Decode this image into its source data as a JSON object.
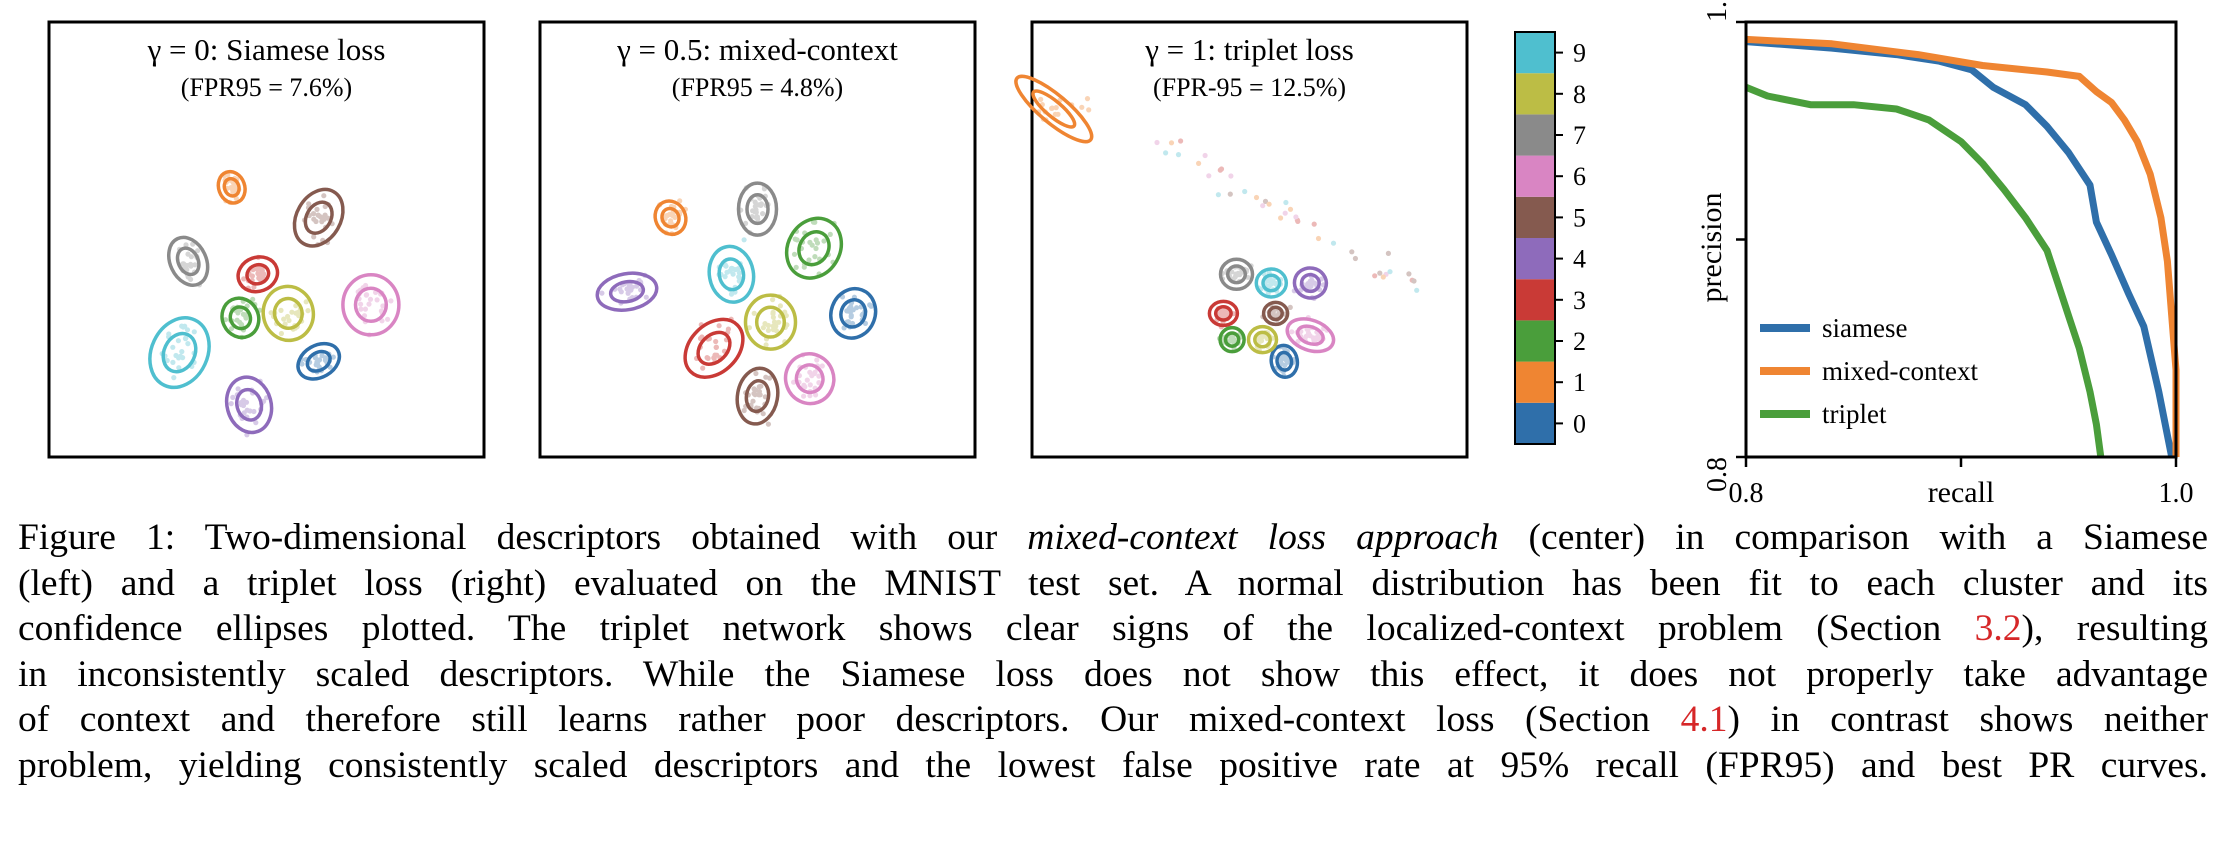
{
  "colors": {
    "0": "#2f6faa",
    "1": "#ef8532",
    "2": "#4a9e3b",
    "3": "#c93a36",
    "4": "#8e6bbb",
    "5": "#855a4f",
    "6": "#d985c3",
    "7": "#8a8a8a",
    "8": "#bcbd45",
    "9": "#4fbfcf"
  },
  "colorbar": {
    "ticks": [
      "0",
      "1",
      "2",
      "3",
      "4",
      "5",
      "6",
      "7",
      "8",
      "9"
    ]
  },
  "chart_data": [
    {
      "type": "scatter",
      "title": "γ = 0: Siamese loss",
      "subtitle": "(FPR95 = 7.6%)",
      "classes": [
        "0",
        "1",
        "2",
        "3",
        "4",
        "5",
        "6",
        "7",
        "8",
        "9"
      ],
      "cluster_centers": {
        "0": [
          0.62,
          0.22
        ],
        "1": [
          0.42,
          0.62
        ],
        "2": [
          0.44,
          0.32
        ],
        "3": [
          0.48,
          0.42
        ],
        "4": [
          0.46,
          0.12
        ],
        "5": [
          0.62,
          0.55
        ],
        "6": [
          0.74,
          0.35
        ],
        "7": [
          0.32,
          0.45
        ],
        "8": [
          0.55,
          0.33
        ],
        "9": [
          0.3,
          0.24
        ]
      }
    },
    {
      "type": "scatter",
      "title": "γ = 0.5: mixed-context",
      "subtitle": "(FPR95 = 4.8%)",
      "classes": [
        "0",
        "1",
        "2",
        "3",
        "4",
        "5",
        "6",
        "7",
        "8",
        "9"
      ],
      "cluster_centers": {
        "0": [
          0.72,
          0.33
        ],
        "1": [
          0.3,
          0.55
        ],
        "2": [
          0.63,
          0.48
        ],
        "3": [
          0.4,
          0.25
        ],
        "4": [
          0.2,
          0.38
        ],
        "5": [
          0.5,
          0.14
        ],
        "6": [
          0.62,
          0.18
        ],
        "7": [
          0.5,
          0.57
        ],
        "8": [
          0.53,
          0.31
        ],
        "9": [
          0.44,
          0.42
        ]
      }
    },
    {
      "type": "scatter",
      "title": "γ = 1: triplet loss",
      "subtitle": "(FPR-95 = 12.5%)",
      "classes": [
        "0",
        "1",
        "2",
        "3",
        "4",
        "5",
        "6",
        "7",
        "8",
        "9"
      ],
      "cluster_centers": {
        "0": [
          0.58,
          0.22
        ],
        "1": [
          0.05,
          0.8
        ],
        "2": [
          0.46,
          0.27
        ],
        "3": [
          0.44,
          0.33
        ],
        "4": [
          0.64,
          0.4
        ],
        "5": [
          0.56,
          0.33
        ],
        "6": [
          0.64,
          0.28
        ],
        "7": [
          0.47,
          0.42
        ],
        "8": [
          0.53,
          0.27
        ],
        "9": [
          0.55,
          0.4
        ]
      }
    },
    {
      "type": "line",
      "title": "",
      "xlabel": "recall",
      "ylabel": "precision",
      "xlim": [
        0.8,
        1.0
      ],
      "ylim": [
        0.8,
        1.0
      ],
      "xticks": [
        "0.8",
        "1.0"
      ],
      "yticks": [
        "0.8",
        "1.0"
      ],
      "legend_position": "bottom-left",
      "series": [
        {
          "name": "siamese",
          "color": "#2f6faa",
          "points": [
            [
              0.8,
              0.991
            ],
            [
              0.84,
              0.988
            ],
            [
              0.87,
              0.985
            ],
            [
              0.89,
              0.982
            ],
            [
              0.905,
              0.978
            ],
            [
              0.915,
              0.97
            ],
            [
              0.93,
              0.962
            ],
            [
              0.94,
              0.952
            ],
            [
              0.95,
              0.94
            ],
            [
              0.96,
              0.925
            ],
            [
              0.963,
              0.908
            ],
            [
              0.97,
              0.893
            ],
            [
              0.978,
              0.875
            ],
            [
              0.985,
              0.86
            ],
            [
              0.992,
              0.83
            ],
            [
              0.998,
              0.8
            ]
          ]
        },
        {
          "name": "mixed-context",
          "color": "#ef8532",
          "points": [
            [
              0.8,
              0.992
            ],
            [
              0.84,
              0.99
            ],
            [
              0.88,
              0.985
            ],
            [
              0.91,
              0.98
            ],
            [
              0.94,
              0.977
            ],
            [
              0.955,
              0.975
            ],
            [
              0.963,
              0.968
            ],
            [
              0.97,
              0.963
            ],
            [
              0.976,
              0.955
            ],
            [
              0.982,
              0.945
            ],
            [
              0.988,
              0.93
            ],
            [
              0.993,
              0.91
            ],
            [
              0.996,
              0.89
            ],
            [
              0.998,
              0.865
            ],
            [
              1.0,
              0.84
            ],
            [
              1.0,
              0.8
            ]
          ]
        },
        {
          "name": "triplet",
          "color": "#4a9e3b",
          "points": [
            [
              0.8,
              0.97
            ],
            [
              0.81,
              0.966
            ],
            [
              0.83,
              0.962
            ],
            [
              0.85,
              0.962
            ],
            [
              0.87,
              0.96
            ],
            [
              0.885,
              0.955
            ],
            [
              0.9,
              0.945
            ],
            [
              0.91,
              0.935
            ],
            [
              0.92,
              0.923
            ],
            [
              0.93,
              0.91
            ],
            [
              0.94,
              0.895
            ],
            [
              0.945,
              0.88
            ],
            [
              0.95,
              0.865
            ],
            [
              0.955,
              0.85
            ],
            [
              0.96,
              0.83
            ],
            [
              0.963,
              0.815
            ],
            [
              0.965,
              0.8
            ]
          ]
        }
      ]
    }
  ],
  "caption": {
    "line1_a": "Figure 1:  Two-dimensional descriptors obtained with our ",
    "line1_em": "mixed-context loss approach",
    "line1_b": " (center) in comparison with a Siamese",
    "line2": "(left) and a triplet loss (right) evaluated on the MNIST test set.  A normal distribution has been fit to each cluster and its",
    "line3_a": "confidence ellipses plotted.  The triplet network shows clear signs of the localized-context problem (Section ",
    "line3_ref": "3.2",
    "line3_b": "), resulting",
    "line4": "in inconsistently scaled descriptors.  While the Siamese loss does not show this effect, it does not properly take advantage",
    "line5_a": "of context and therefore still learns rather poor descriptors.  Our mixed-context loss (Section ",
    "line5_ref": "4.1",
    "line5_b": ") in contrast shows neither",
    "line6": "problem, yielding consistently scaled descriptors and the lowest false positive rate at 95% recall (FPR95) and best PR curves."
  }
}
